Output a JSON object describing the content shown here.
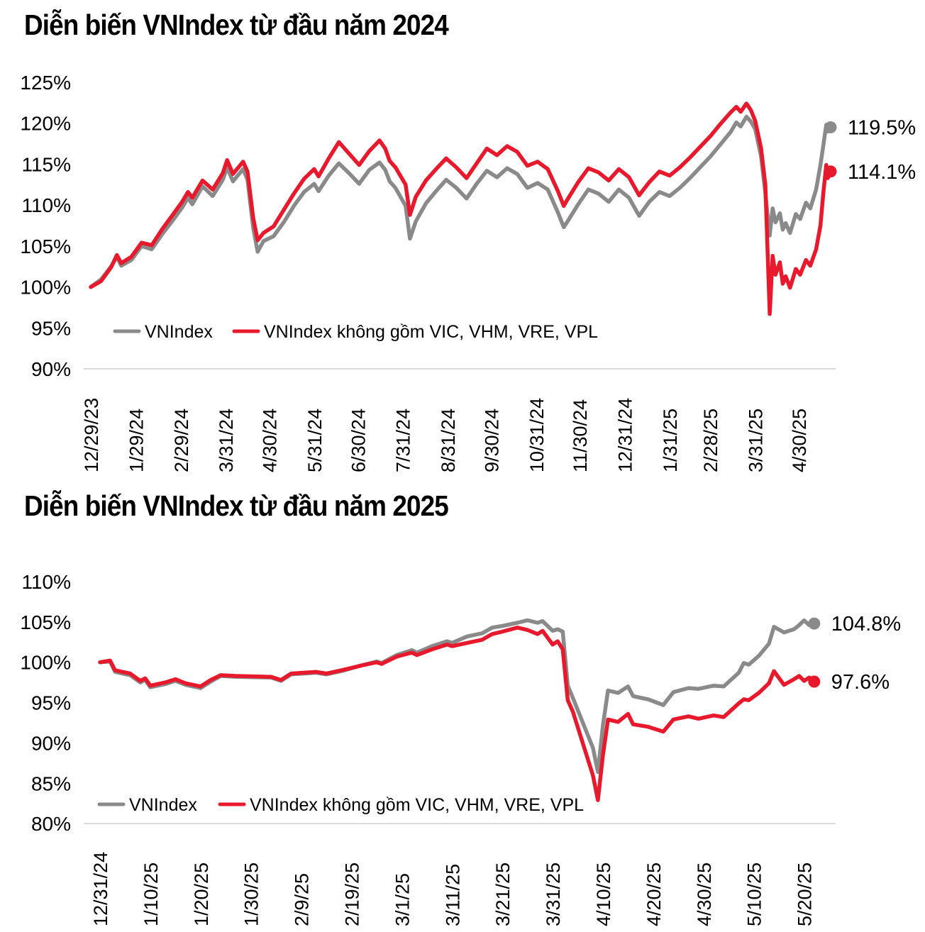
{
  "colors": {
    "vnindex_line": "#8a8a8a",
    "vnindex_ex_line": "#e8192c",
    "baseline": "#d9d9d9",
    "text": "#000000",
    "background": "#ffffff"
  },
  "chart_data": [
    {
      "type": "line",
      "title": "Diễn biến VNIndex từ đầu năm 2024",
      "ylim": [
        90,
        125
      ],
      "grid": false,
      "legend_position": "bottom-left-inside",
      "y_tick_labels": [
        "125%",
        "120%",
        "115%",
        "110%",
        "105%",
        "100%",
        "95%",
        "90%"
      ],
      "x_tick_labels": [
        "12/29/23",
        "1/29/24",
        "2/29/24",
        "3/31/24",
        "4/30/24",
        "5/31/24",
        "6/30/24",
        "7/31/24",
        "8/31/24",
        "9/30/24",
        "10/31/24",
        "11/30/24",
        "12/31/24",
        "1/31/25",
        "2/28/25",
        "3/31/25",
        "4/30/25"
      ],
      "x_tick_days": [
        0,
        31,
        62,
        93,
        123,
        154,
        184,
        215,
        246,
        276,
        307,
        337,
        368,
        399,
        427,
        458,
        488
      ],
      "x_unit": "calendar days since 12/29/2023",
      "series": [
        {
          "name": "VNIndex",
          "color": "#8a8a8a",
          "end_label": "119.5%",
          "days": [
            0,
            7,
            14,
            18,
            21,
            28,
            35,
            42,
            49,
            56,
            63,
            67,
            70,
            77,
            84,
            91,
            94,
            98,
            105,
            108,
            112,
            115,
            119,
            126,
            133,
            140,
            147,
            154,
            157,
            164,
            171,
            178,
            185,
            192,
            199,
            203,
            206,
            210,
            217,
            220,
            224,
            231,
            238,
            245,
            252,
            259,
            266,
            273,
            280,
            287,
            294,
            301,
            308,
            315,
            322,
            326,
            329,
            336,
            343,
            350,
            357,
            364,
            371,
            378,
            385,
            392,
            399,
            406,
            413,
            420,
            427,
            434,
            441,
            445,
            448,
            452,
            455,
            458,
            462,
            465,
            468,
            470,
            472,
            475,
            477,
            479,
            482,
            486,
            489,
            493,
            496,
            500,
            503,
            505,
            507,
            508,
            510
          ],
          "values": [
            100,
            100.9,
            102.5,
            103.7,
            102.6,
            103.3,
            105.0,
            104.6,
            106.4,
            108.0,
            109.7,
            110.9,
            110.1,
            112.3,
            111.1,
            113.1,
            114.6,
            112.9,
            114.4,
            113.1,
            107.2,
            104.3,
            105.6,
            106.2,
            107.9,
            109.9,
            111.6,
            112.6,
            111.7,
            113.6,
            115.1,
            113.9,
            112.6,
            114.3,
            115.2,
            114.3,
            112.9,
            112.1,
            109.9,
            105.9,
            108.0,
            110.2,
            111.7,
            113.1,
            112.1,
            110.8,
            112.6,
            114.2,
            113.4,
            114.5,
            113.8,
            112.1,
            112.7,
            111.9,
            109.1,
            107.3,
            108.1,
            110.1,
            111.9,
            111.4,
            110.4,
            111.9,
            110.9,
            108.7,
            110.4,
            111.6,
            111.1,
            112.1,
            113.3,
            114.6,
            115.9,
            117.4,
            118.9,
            120.1,
            119.6,
            120.8,
            120.2,
            119.3,
            116.0,
            111.5,
            106.3,
            109.6,
            107.9,
            109.0,
            107.0,
            107.8,
            106.6,
            108.9,
            108.3,
            110.3,
            109.6,
            111.9,
            114.9,
            117.3,
            119.8,
            119.0,
            119.5
          ]
        },
        {
          "name": "VNIndex không gồm VIC, VHM, VRE, VPL",
          "color": "#e8192c",
          "end_label": "114.1%",
          "days": [
            0,
            7,
            14,
            18,
            21,
            28,
            35,
            42,
            49,
            56,
            63,
            67,
            70,
            77,
            84,
            91,
            94,
            98,
            105,
            108,
            112,
            115,
            119,
            126,
            133,
            140,
            147,
            154,
            157,
            164,
            171,
            178,
            185,
            192,
            199,
            203,
            206,
            210,
            217,
            220,
            224,
            231,
            238,
            245,
            252,
            259,
            266,
            273,
            280,
            287,
            294,
            301,
            308,
            315,
            322,
            326,
            329,
            336,
            343,
            350,
            357,
            364,
            371,
            378,
            385,
            392,
            399,
            406,
            413,
            420,
            427,
            434,
            441,
            445,
            448,
            452,
            455,
            458,
            462,
            465,
            468,
            470,
            472,
            475,
            477,
            479,
            482,
            486,
            489,
            493,
            496,
            500,
            503,
            505,
            507,
            508,
            510
          ],
          "values": [
            100,
            100.7,
            102.4,
            103.9,
            102.9,
            103.7,
            105.4,
            105.1,
            107.0,
            108.7,
            110.4,
            111.6,
            110.9,
            113.0,
            111.9,
            113.9,
            115.5,
            113.8,
            115.3,
            114.1,
            108.4,
            105.7,
            106.6,
            107.4,
            109.4,
            111.4,
            113.2,
            114.4,
            113.5,
            115.7,
            117.7,
            116.3,
            114.9,
            116.6,
            117.9,
            116.9,
            115.4,
            114.6,
            112.5,
            108.8,
            111.0,
            113.0,
            114.4,
            115.7,
            114.6,
            113.3,
            115.1,
            116.9,
            116.1,
            117.2,
            116.5,
            114.8,
            115.3,
            114.4,
            111.7,
            109.9,
            110.8,
            112.8,
            114.5,
            114.0,
            113.0,
            114.4,
            113.4,
            111.2,
            112.8,
            114.1,
            113.6,
            114.6,
            115.8,
            117.1,
            118.4,
            119.9,
            121.3,
            122.0,
            121.4,
            122.4,
            121.6,
            120.3,
            117.0,
            112.5,
            96.7,
            103.8,
            101.5,
            103.0,
            100.4,
            101.3,
            99.9,
            102.2,
            101.5,
            103.3,
            102.6,
            104.6,
            107.5,
            111.5,
            114.9,
            113.3,
            114.1
          ]
        }
      ]
    },
    {
      "type": "line",
      "title": "Diễn biến VNIndex từ đầu năm 2025",
      "ylim": [
        80,
        110
      ],
      "grid": false,
      "legend_position": "bottom-left-inside",
      "y_tick_labels": [
        "110%",
        "105%",
        "100%",
        "95%",
        "90%",
        "85%",
        "80%"
      ],
      "x_tick_labels": [
        "12/31/24",
        "1/10/25",
        "1/20/25",
        "1/30/25",
        "2/9/25",
        "2/19/25",
        "3/1/25",
        "3/11/25",
        "3/21/25",
        "3/31/25",
        "4/10/25",
        "4/20/25",
        "4/30/25",
        "5/10/25",
        "5/20/25"
      ],
      "x_tick_days": [
        0,
        10,
        20,
        30,
        40,
        50,
        60,
        70,
        80,
        90,
        100,
        110,
        120,
        130,
        140
      ],
      "x_unit": "calendar days since 12/31/2024",
      "series": [
        {
          "name": "VNIndex",
          "color": "#8a8a8a",
          "end_label": "104.8%",
          "days": [
            0,
            2,
            3,
            6,
            8,
            9,
            10,
            13,
            15,
            17,
            20,
            22,
            24,
            27,
            34,
            36,
            38,
            43,
            45,
            48,
            52,
            55,
            56,
            59,
            62,
            63,
            66,
            69,
            70,
            73,
            76,
            78,
            80,
            83,
            85,
            87,
            88,
            90,
            91,
            92,
            93,
            94,
            98,
            99,
            100,
            101,
            103,
            105,
            106,
            109,
            112,
            114,
            117,
            119,
            122,
            124,
            127,
            128,
            129,
            131,
            133,
            134,
            136,
            138,
            139,
            140,
            141,
            142
          ],
          "values": [
            100.0,
            100.1,
            98.8,
            98.4,
            97.5,
            97.8,
            96.9,
            97.3,
            97.7,
            97.2,
            96.8,
            97.6,
            98.3,
            98.2,
            98.1,
            97.7,
            98.5,
            98.7,
            98.5,
            98.9,
            99.6,
            100.1,
            99.9,
            100.9,
            101.5,
            101.2,
            102.0,
            102.6,
            102.4,
            103.2,
            103.6,
            104.3,
            104.5,
            104.9,
            105.2,
            104.9,
            105.1,
            103.9,
            104.1,
            103.8,
            97.1,
            95.6,
            89.4,
            86.4,
            92.2,
            96.5,
            96.2,
            97.0,
            95.8,
            95.4,
            94.7,
            96.3,
            96.8,
            96.7,
            97.1,
            97.0,
            98.7,
            99.9,
            99.7,
            100.8,
            102.3,
            104.4,
            103.7,
            104.1,
            104.6,
            105.2,
            104.6,
            104.8
          ]
        },
        {
          "name": "VNIndex không gồm VIC, VHM, VRE, VPL",
          "color": "#e8192c",
          "end_label": "97.6%",
          "days": [
            0,
            2,
            3,
            6,
            8,
            9,
            10,
            13,
            15,
            17,
            20,
            22,
            24,
            27,
            34,
            36,
            38,
            43,
            45,
            48,
            52,
            55,
            56,
            59,
            62,
            63,
            66,
            69,
            70,
            73,
            76,
            78,
            80,
            83,
            85,
            87,
            88,
            90,
            91,
            92,
            93,
            94,
            98,
            99,
            100,
            101,
            103,
            105,
            106,
            109,
            112,
            114,
            117,
            119,
            122,
            124,
            127,
            128,
            129,
            131,
            133,
            134,
            136,
            138,
            139,
            140,
            141,
            142
          ],
          "values": [
            100.0,
            100.2,
            99.0,
            98.6,
            97.7,
            98.0,
            97.1,
            97.5,
            97.9,
            97.4,
            97.0,
            97.8,
            98.4,
            98.3,
            98.2,
            97.8,
            98.6,
            98.8,
            98.6,
            99.0,
            99.6,
            100.0,
            99.8,
            100.7,
            101.2,
            100.9,
            101.6,
            102.2,
            102.0,
            102.4,
            102.8,
            103.5,
            103.8,
            104.3,
            104.0,
            103.5,
            103.9,
            102.2,
            102.6,
            101.6,
            95.3,
            93.9,
            86.0,
            82.9,
            88.5,
            92.9,
            92.6,
            93.6,
            92.3,
            92.0,
            91.4,
            92.9,
            93.3,
            93.0,
            93.4,
            93.2,
            94.9,
            95.4,
            95.3,
            96.2,
            97.4,
            98.9,
            97.2,
            97.9,
            98.3,
            97.7,
            98.1,
            97.6
          ]
        }
      ]
    }
  ]
}
